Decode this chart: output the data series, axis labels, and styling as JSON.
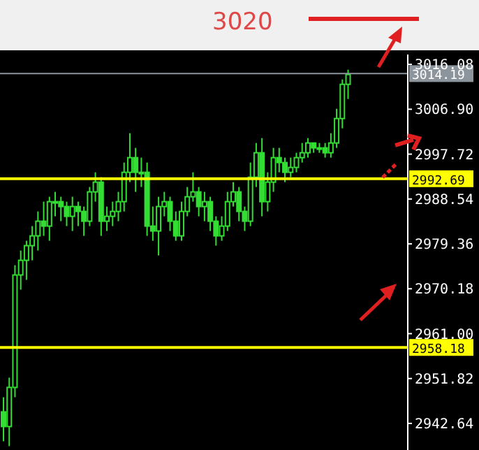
{
  "chart_data": {
    "type": "candlestick",
    "categories": [
      null,
      null,
      null,
      null,
      null,
      null,
      null,
      null,
      null,
      null,
      null,
      null,
      null,
      null,
      null,
      null,
      null,
      null,
      null,
      null,
      null,
      null,
      null,
      null,
      null,
      null,
      null,
      null,
      null,
      null,
      null,
      null,
      null,
      null,
      null,
      null,
      null,
      null,
      null,
      null,
      null,
      null,
      null,
      null,
      null,
      null,
      null,
      null,
      null,
      null,
      null,
      null,
      null,
      null,
      null,
      null,
      null,
      null,
      null,
      null,
      null,
      null,
      null,
      null,
      null,
      null,
      null,
      null,
      null,
      null,
      null
    ],
    "series": [
      {
        "color": "#33dd33",
        "ohlc": [
          [
            2945,
            2948,
            2939,
            2942
          ],
          [
            2942,
            2952,
            2938,
            2950
          ],
          [
            2950,
            2975,
            2948,
            2973
          ],
          [
            2973,
            2978,
            2970,
            2976
          ],
          [
            2976,
            2980,
            2972,
            2979
          ],
          [
            2979,
            2983,
            2976,
            2981
          ],
          [
            2981,
            2986,
            2978,
            2984
          ],
          [
            2984,
            2988,
            2981,
            2983
          ],
          [
            2983,
            2989,
            2980,
            2988
          ],
          [
            2988,
            2990,
            2985,
            2988
          ],
          [
            2988,
            2989,
            2984,
            2987
          ],
          [
            2987,
            2988,
            2983,
            2985
          ],
          [
            2985,
            2989,
            2982,
            2987
          ],
          [
            2987,
            2988,
            2983,
            2986
          ],
          [
            2986,
            2987,
            2981,
            2984
          ],
          [
            2984,
            2991,
            2983,
            2990
          ],
          [
            2990,
            2994,
            2988,
            2992
          ],
          [
            2992,
            2993,
            2981,
            2984
          ],
          [
            2984,
            2987,
            2982,
            2985
          ],
          [
            2985,
            2988,
            2983,
            2986
          ],
          [
            2986,
            2990,
            2984,
            2988
          ],
          [
            2988,
            2996,
            2986,
            2994
          ],
          [
            2994,
            3002,
            2992,
            2997
          ],
          [
            2997,
            2999,
            2990,
            2994
          ],
          [
            2994,
            2997,
            2991,
            2994
          ],
          [
            2994,
            2996,
            2981,
            2983
          ],
          [
            2983,
            2987,
            2980,
            2982
          ],
          [
            2982,
            2989,
            2977,
            2987
          ],
          [
            2987,
            2990,
            2985,
            2988
          ],
          [
            2988,
            2989,
            2982,
            2984
          ],
          [
            2984,
            2986,
            2980,
            2981
          ],
          [
            2981,
            2988,
            2980,
            2986
          ],
          [
            2986,
            2991,
            2985,
            2989
          ],
          [
            2989,
            2994,
            2988,
            2990
          ],
          [
            2990,
            2991,
            2985,
            2987
          ],
          [
            2987,
            2990,
            2984,
            2988
          ],
          [
            2988,
            2989,
            2982,
            2984
          ],
          [
            2984,
            2985,
            2979,
            2981
          ],
          [
            2981,
            2985,
            2980,
            2983
          ],
          [
            2983,
            2990,
            2982,
            2988
          ],
          [
            2988,
            2992,
            2987,
            2990
          ],
          [
            2990,
            2991,
            2984,
            2986
          ],
          [
            2986,
            2987,
            2982,
            2984
          ],
          [
            2984,
            2996,
            2983,
            2993
          ],
          [
            2993,
            3000,
            2991,
            2998
          ],
          [
            2998,
            3001,
            2985,
            2988
          ],
          [
            2988,
            2994,
            2986,
            2992
          ],
          [
            2992,
            2999,
            2990,
            2997
          ],
          [
            2997,
            2999,
            2994,
            2996
          ],
          [
            2996,
            2997,
            2992,
            2994
          ],
          [
            2994,
            2997,
            2993,
            2995
          ],
          [
            2995,
            2998,
            2994,
            2997
          ],
          [
            2997,
            3000,
            2996,
            2998
          ],
          [
            2998,
            3001,
            2997,
            3000
          ],
          [
            3000,
            3000,
            2998,
            2999
          ],
          [
            2999,
            3000,
            2998,
            2999
          ],
          [
            2999,
            3000,
            2997,
            2998
          ],
          [
            2998,
            3002,
            2997,
            3000
          ],
          [
            3000,
            3007,
            2999,
            3005
          ],
          [
            3005,
            3013,
            3003,
            3012
          ],
          [
            3012,
            3015,
            3009,
            3014
          ],
          null,
          null,
          null,
          null,
          null,
          null,
          null,
          null,
          null,
          null
        ]
      }
    ],
    "ylim": [
      2937.2,
      3018.1
    ],
    "yticks": [
      3016.08,
      {
        "value": 3006.9,
        "label": "3006.90"
      },
      2997.72,
      2988.54,
      2979.36,
      2970.18,
      {
        "value": 2961,
        "label": "2961.00"
      },
      2951.82,
      2942.64
    ],
    "ref_lines": [
      {
        "axis": "y",
        "value": 3014.19,
        "label": "3014.19",
        "color": "#8c949c"
      },
      {
        "axis": "y",
        "value": 2992.69,
        "label": "2992.69",
        "color": "#ffff00"
      },
      {
        "axis": "y",
        "value": 2958.18,
        "label": "2958.18",
        "color": "#ffff00"
      }
    ],
    "annotations": [
      "3020"
    ],
    "grid": false,
    "legend": false
  }
}
